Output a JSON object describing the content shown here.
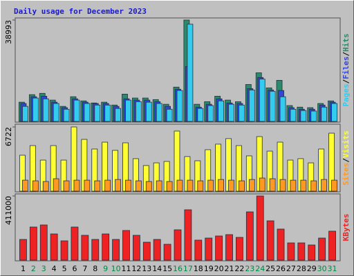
{
  "title": "Daily usage for December 2023",
  "legend_separator": "/",
  "chart_data": [
    {
      "type": "bar",
      "series": [
        {
          "name": "Hits",
          "color": "#2a8a6a",
          "values": [
            7400,
            10300,
            10800,
            8200,
            5800,
            9500,
            7900,
            7100,
            7400,
            6300,
            10500,
            9000,
            9000,
            8400,
            6600,
            13200,
            38993,
            6600,
            7600,
            9700,
            8200,
            7600,
            14200,
            18700,
            12900,
            15800,
            6100,
            5500,
            5300,
            6900,
            7900
          ]
        },
        {
          "name": "Files",
          "color": "#3344d8",
          "values": [
            6900,
            9500,
            9700,
            7400,
            5300,
            8700,
            7400,
            6900,
            6900,
            5800,
            8700,
            8200,
            8200,
            7600,
            5800,
            12400,
            21100,
            5500,
            6600,
            8700,
            7100,
            6900,
            12600,
            16900,
            12100,
            11900,
            5300,
            4700,
            4700,
            6300,
            7400
          ]
        },
        {
          "name": "Pages",
          "color": "#33ccee",
          "values": [
            5800,
            9000,
            8700,
            6900,
            4700,
            8200,
            6900,
            6300,
            6300,
            5000,
            8200,
            7600,
            7400,
            6900,
            4700,
            11900,
            37400,
            5000,
            6100,
            7900,
            6600,
            6300,
            12100,
            16300,
            11600,
            9500,
            4700,
            4200,
            4000,
            5500,
            6900
          ]
        }
      ],
      "ylim": [
        0,
        38993
      ],
      "yticks": [
        38993
      ]
    },
    {
      "type": "bar",
      "series": [
        {
          "name": "Visits",
          "color": "#ffff33",
          "values": [
            3760,
            4770,
            3250,
            4770,
            3250,
            6722,
            5420,
            4410,
            5130,
            4270,
            5060,
            3400,
            2680,
            2960,
            3110,
            6290,
            3620,
            3180,
            4340,
            4920,
            5500,
            4770,
            3690,
            5710,
            4190,
            5130,
            3250,
            3400,
            2960,
            4410,
            6070
          ]
        },
        {
          "name": "Sites",
          "color": "#ff9922",
          "values": [
            1150,
            1080,
            1010,
            1300,
            1080,
            1150,
            1150,
            1080,
            1150,
            1220,
            1150,
            1080,
            1010,
            1080,
            1010,
            1150,
            1150,
            1080,
            1150,
            1220,
            1150,
            1080,
            1220,
            1370,
            1300,
            1220,
            1150,
            1150,
            1080,
            1220,
            1150
          ]
        }
      ],
      "ylim": [
        0,
        6722
      ],
      "yticks": [
        6722
      ]
    },
    {
      "type": "bar",
      "categories": [
        "1",
        "2",
        "3",
        "4",
        "5",
        "6",
        "7",
        "8",
        "9",
        "10",
        "11",
        "12",
        "13",
        "14",
        "15",
        "16",
        "17",
        "18",
        "19",
        "20",
        "21",
        "22",
        "23",
        "24",
        "25",
        "26",
        "27",
        "28",
        "29",
        "30",
        "31"
      ],
      "category_colors": [
        "#000000",
        "#008844",
        "#008844",
        "#000000",
        "#000000",
        "#000000",
        "#000000",
        "#000000",
        "#008844",
        "#008844",
        "#000000",
        "#000000",
        "#000000",
        "#000000",
        "#000000",
        "#008844",
        "#008844",
        "#000000",
        "#000000",
        "#000000",
        "#000000",
        "#000000",
        "#008844",
        "#008844",
        "#000000",
        "#000000",
        "#000000",
        "#000000",
        "#000000",
        "#008844",
        "#008844"
      ],
      "series": [
        {
          "name": "KBytes",
          "color": "#ee2222",
          "values": [
            132600,
            212100,
            225400,
            167900,
            123700,
            212100,
            159100,
            132600,
            167900,
            132600,
            190000,
            159100,
            114900,
            132600,
            101600,
            194400,
            322600,
            128200,
            141400,
            154700,
            163500,
            145800,
            309300,
            411000,
            251900,
            198900,
            110500,
            110500,
            97200,
            141400,
            185600
          ]
        }
      ],
      "ylim": [
        0,
        411000
      ],
      "yticks": [
        411000
      ]
    }
  ]
}
